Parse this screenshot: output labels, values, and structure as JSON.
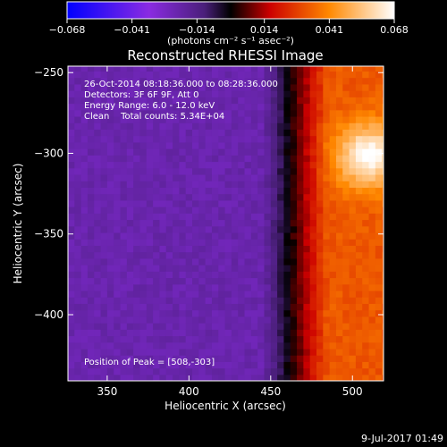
{
  "chart_data": {
    "type": "heatmap",
    "title": "Reconstructed RHESSI Image",
    "xlabel": "Heliocentric X (arcsec)",
    "ylabel": "Heliocentric Y (arcsec)",
    "xlim": [
      326,
      519
    ],
    "ylim": [
      -441,
      -246
    ],
    "x_ticks": [
      350,
      400,
      450,
      500
    ],
    "y_ticks": [
      -250,
      -300,
      -350,
      -400
    ],
    "colorbar": {
      "range": [
        -0.068,
        0.068
      ],
      "tick_values": [
        -0.068,
        -0.041,
        -0.014,
        0.014,
        0.041,
        0.068
      ],
      "tick_labels": [
        "−0.068",
        "−0.041",
        "−0.014",
        "0.014",
        "0.041",
        "0.068"
      ],
      "label": "(photons cm⁻² s⁻¹ asec⁻²)",
      "colors": [
        "#0000ff",
        "#8a2be2",
        "#5a2a8a",
        "#000000",
        "#ff0000",
        "#ffa500",
        "#ffffff"
      ]
    },
    "annotations": [
      "26-Oct-2014 08:18:36.000 to 08:28:36.000",
      "Detectors: 3F 6F 9F, Att 0",
      "Energy Range: 6.0 - 12.0 keV",
      "Clean    Total counts: 5.34E+04"
    ],
    "peak_label": "Position of Peak = [508,-303]",
    "peak": {
      "x": 508,
      "y": -303
    },
    "intensity_model": {
      "background": -0.022,
      "limb_x": 455,
      "source_peak_value": 0.068
    }
  },
  "footer": {
    "timestamp": "9-Jul-2017 01:49"
  }
}
